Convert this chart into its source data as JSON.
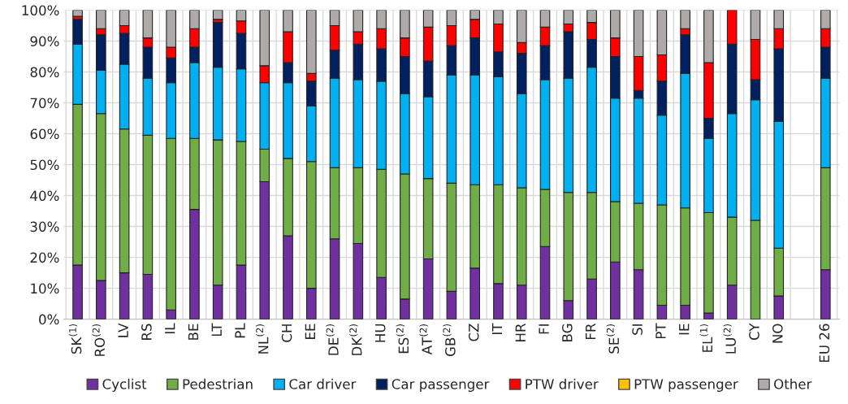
{
  "chart_data": {
    "type": "bar",
    "stacked": true,
    "categories": [
      "SK$^{(1)}$",
      "RO$^{(2)}$",
      "LV",
      "RS",
      "IL",
      "BE",
      "LT",
      "PL",
      "NL$^{(2)}$",
      "CH",
      "EE",
      "DE$^{(2)}$",
      "DK$^{(2)}$",
      "HU",
      "ES$^{(2)}$",
      "AT$^{(2)}$",
      "GB$^{(2)}$",
      "CZ",
      "IT",
      "HR",
      "FI",
      "BG",
      "FR",
      "SE$^{(2)}$",
      "SI",
      "PT",
      "IE",
      "EL$^{(1)}$",
      "LU$^{(2)}$",
      "CY",
      "NO",
      null,
      "EU 26"
    ],
    "series": [
      {
        "name": "Cyclist",
        "color": "#7030a0",
        "values": [
          17.5,
          12.5,
          15,
          14.5,
          3,
          35.5,
          11,
          17.5,
          44.5,
          27,
          10,
          26,
          24.5,
          13.5,
          6.5,
          19.5,
          9,
          16.5,
          11.5,
          11,
          23.5,
          6,
          13,
          18.5,
          16,
          4.5,
          4.5,
          2,
          11,
          0,
          7.5,
          null,
          16
        ]
      },
      {
        "name": "Pedestrian",
        "color": "#70ad47",
        "values": [
          52,
          54,
          46.5,
          45,
          55.5,
          23,
          47,
          40,
          10.5,
          25,
          41,
          23,
          24.5,
          35,
          40.5,
          26,
          35,
          27,
          32,
          31.5,
          18.5,
          35,
          28,
          19.5,
          21.5,
          32.5,
          31.5,
          32.5,
          22,
          32,
          15.5,
          null,
          33
        ]
      },
      {
        "name": "Car driver",
        "color": "#00b0f0",
        "values": [
          19.5,
          14,
          21,
          18.5,
          18,
          24.5,
          23.5,
          23.5,
          21.5,
          24.5,
          18,
          29,
          28.5,
          28.5,
          26,
          26.5,
          35,
          35.5,
          35,
          30.5,
          35.5,
          37,
          40.5,
          33.5,
          34,
          29,
          43.5,
          24,
          33.5,
          39,
          41,
          null,
          29
        ]
      },
      {
        "name": "Car passenger",
        "color": "#002060",
        "values": [
          8,
          11.5,
          10,
          10,
          8,
          5,
          14.5,
          11.5,
          0,
          6.5,
          8,
          9,
          11.5,
          10.5,
          12,
          11.5,
          9.5,
          12,
          8,
          13,
          11,
          15,
          9,
          13.5,
          2.5,
          11,
          12.5,
          6.5,
          22.5,
          6.5,
          23.5,
          null,
          10
        ]
      },
      {
        "name": "PTW driver",
        "color": "#ff0000",
        "values": [
          1,
          2,
          2.5,
          3,
          3.5,
          6,
          1,
          4,
          5.5,
          10,
          2.5,
          8,
          4,
          6.5,
          6,
          11,
          6.5,
          6,
          9,
          3.5,
          6,
          2.5,
          5.5,
          6,
          11,
          8.5,
          2,
          18,
          11,
          13,
          6.5,
          null,
          6
        ]
      },
      {
        "name": "PTW passenger",
        "color": "#ffc000",
        "values": [
          0,
          0,
          0,
          0,
          0,
          0,
          0,
          0,
          0,
          0,
          0,
          0,
          0,
          0,
          0,
          0,
          0,
          0,
          0,
          0,
          0,
          0,
          0,
          0,
          0,
          0,
          0,
          0,
          0,
          0,
          0,
          null,
          0
        ]
      },
      {
        "name": "Other",
        "color": "#aeaaaa",
        "values": [
          2,
          6,
          5,
          9,
          12,
          6,
          3,
          3.5,
          18,
          7,
          20.5,
          5,
          7,
          6,
          9,
          5.5,
          5,
          3,
          4.5,
          10.5,
          5.5,
          4.5,
          4,
          9,
          15,
          14.5,
          6,
          17,
          0,
          9.5,
          6,
          null,
          6
        ]
      }
    ],
    "ylim": [
      0,
      100
    ],
    "yticks": [
      {
        "value": 0,
        "label": "0%"
      },
      {
        "value": 10,
        "label": "10%"
      },
      {
        "value": 20,
        "label": "20%"
      },
      {
        "value": 30,
        "label": "30%"
      },
      {
        "value": 40,
        "label": "40%"
      },
      {
        "value": 50,
        "label": "50%"
      },
      {
        "value": 60,
        "label": "60%"
      },
      {
        "value": 70,
        "label": "70%"
      },
      {
        "value": 80,
        "label": "80%"
      },
      {
        "value": 90,
        "label": "90%"
      },
      {
        "value": 100,
        "label": "100%"
      }
    ],
    "grid": true,
    "legend": "bottom"
  }
}
